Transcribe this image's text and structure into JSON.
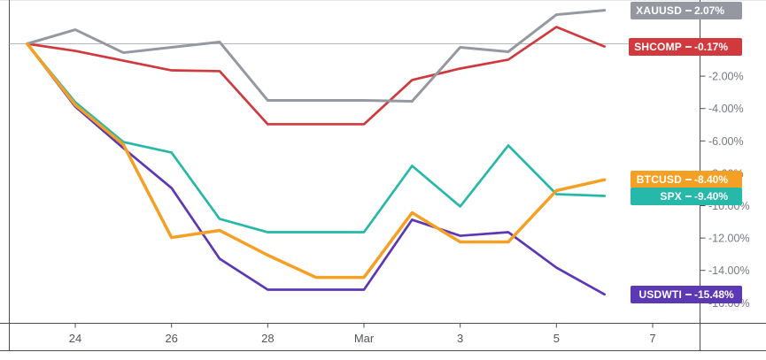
{
  "chart_data": {
    "type": "line",
    "unit": "percent_change_vs_start",
    "x": [
      "Feb 23",
      "Feb 24",
      "Feb 25",
      "Feb 26",
      "Feb 27",
      "Feb 28",
      "Feb 29",
      "Mar 1",
      "Mar 2",
      "Mar 3",
      "Mar 4",
      "Mar 5",
      "Mar 6"
    ],
    "series": [
      {
        "name": "XAUUSD",
        "color": "#9598a1",
        "last_label": "2.07%",
        "values": [
          0,
          0.87,
          -0.55,
          -0.22,
          0.11,
          -3.5,
          -3.5,
          -3.5,
          -3.55,
          -0.22,
          -0.49,
          1.8,
          2.07
        ]
      },
      {
        "name": "SHCOMP",
        "color": "#d0393e",
        "last_label": "-0.17%",
        "values": [
          0,
          -0.44,
          -1.04,
          -1.64,
          -1.69,
          -4.97,
          -4.97,
          -4.97,
          -2.24,
          -1.53,
          -0.98,
          1.04,
          -0.17
        ]
      },
      {
        "name": "BTCUSD",
        "color": "#f4a024",
        "last_label": "-8.40%",
        "values": [
          0,
          -3.77,
          -6.23,
          -11.97,
          -11.53,
          -13.06,
          -14.43,
          -14.43,
          -10.44,
          -12.24,
          -12.24,
          -9.07,
          -8.4
        ]
      },
      {
        "name": "SPX",
        "color": "#26b8a9",
        "last_label": "-9.40%",
        "values": [
          0,
          -3.61,
          -6.07,
          -6.72,
          -10.82,
          -11.64,
          -11.64,
          -11.64,
          -7.54,
          -10.05,
          -6.28,
          -9.29,
          -9.4
        ]
      },
      {
        "name": "USDWTI",
        "color": "#5c38b5",
        "last_label": "-15.48%",
        "values": [
          0,
          -3.88,
          -6.45,
          -8.91,
          -13.28,
          -15.19,
          -15.19,
          -15.19,
          -10.87,
          -11.86,
          -11.64,
          -13.83,
          -15.48
        ]
      }
    ],
    "x_ticks": [
      {
        "label": "24",
        "index": 1
      },
      {
        "label": "26",
        "index": 3
      },
      {
        "label": "28",
        "index": 5
      },
      {
        "label": "Mar",
        "index": 7
      },
      {
        "label": "3",
        "index": 9
      },
      {
        "label": "5",
        "index": 11
      },
      {
        "label": "7",
        "index": 13
      }
    ],
    "y_ticks": [
      {
        "label": "-2.00%",
        "value": -2
      },
      {
        "label": "-4.00%",
        "value": -4
      },
      {
        "label": "-6.00%",
        "value": -6
      },
      {
        "label": "-8.00%",
        "value": -8
      },
      {
        "label": "-10.00%",
        "value": -10
      },
      {
        "label": "-12.00%",
        "value": -12
      },
      {
        "label": "-14.00%",
        "value": -14
      },
      {
        "label": "-16.00%",
        "value": -16
      }
    ],
    "ylim": [
      -17.3,
      2.7
    ],
    "zero_line": true,
    "grid": "zero-line-only",
    "legend_position": "right-price-scale-badges"
  }
}
